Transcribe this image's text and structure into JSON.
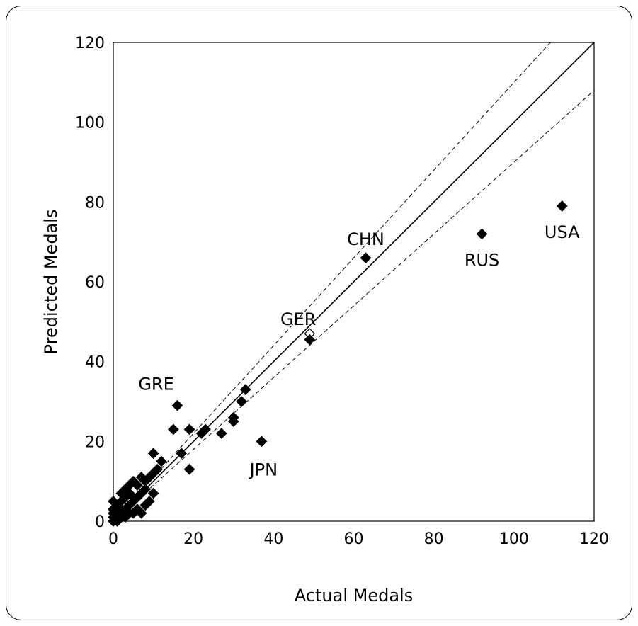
{
  "chart_data": {
    "type": "scatter",
    "xlabel": "Actual Medals",
    "ylabel": "Predicted Medals",
    "xlim": [
      0,
      120
    ],
    "ylim": [
      0,
      120
    ],
    "xticks": [
      0,
      20,
      40,
      60,
      80,
      100,
      120
    ],
    "yticks": [
      0,
      20,
      40,
      60,
      80,
      100,
      120
    ],
    "grid": false,
    "reference_lines": [
      {
        "style": "solid",
        "slope": 1.0,
        "intercept": 0
      },
      {
        "style": "dashed",
        "slope": 1.1,
        "intercept": 0
      },
      {
        "style": "dashed",
        "slope": 0.9,
        "intercept": 0
      }
    ],
    "points": [
      {
        "x": 112,
        "y": 79,
        "label": "USA"
      },
      {
        "x": 92,
        "y": 72,
        "label": "RUS"
      },
      {
        "x": 63,
        "y": 66,
        "label": "CHN"
      },
      {
        "x": 49,
        "y": 47,
        "label": "GER",
        "hollow": true
      },
      {
        "x": 49,
        "y": 45.5
      },
      {
        "x": 37,
        "y": 20,
        "label": "JPN"
      },
      {
        "x": 16,
        "y": 29,
        "label": "GRE"
      },
      {
        "x": 33,
        "y": 33
      },
      {
        "x": 32,
        "y": 30
      },
      {
        "x": 30,
        "y": 26
      },
      {
        "x": 30,
        "y": 25
      },
      {
        "x": 27,
        "y": 22
      },
      {
        "x": 23,
        "y": 23
      },
      {
        "x": 22,
        "y": 22
      },
      {
        "x": 19,
        "y": 23
      },
      {
        "x": 15,
        "y": 23
      },
      {
        "x": 17,
        "y": 17
      },
      {
        "x": 19,
        "y": 13
      },
      {
        "x": 12,
        "y": 15
      },
      {
        "x": 10,
        "y": 17
      },
      {
        "x": 11,
        "y": 13
      },
      {
        "x": 10,
        "y": 12
      },
      {
        "x": 9,
        "y": 11
      },
      {
        "x": 8,
        "y": 10
      },
      {
        "x": 10,
        "y": 7
      },
      {
        "x": 8,
        "y": 8
      },
      {
        "x": 7,
        "y": 11
      },
      {
        "x": 6,
        "y": 9
      },
      {
        "x": 5,
        "y": 10
      },
      {
        "x": 7,
        "y": 7
      },
      {
        "x": 6,
        "y": 6
      },
      {
        "x": 8,
        "y": 4
      },
      {
        "x": 7,
        "y": 2
      },
      {
        "x": 5,
        "y": 5
      },
      {
        "x": 4,
        "y": 7
      },
      {
        "x": 3,
        "y": 8
      },
      {
        "x": 4,
        "y": 4
      },
      {
        "x": 5,
        "y": 2
      },
      {
        "x": 3,
        "y": 6
      },
      {
        "x": 3,
        "y": 3
      },
      {
        "x": 2,
        "y": 5
      },
      {
        "x": 2,
        "y": 2
      },
      {
        "x": 1,
        "y": 4
      },
      {
        "x": 1,
        "y": 1
      },
      {
        "x": 0,
        "y": 3
      },
      {
        "x": 0,
        "y": 1
      },
      {
        "x": 0,
        "y": 0
      },
      {
        "x": 1,
        "y": 0
      },
      {
        "x": 2,
        "y": 1
      },
      {
        "x": 0,
        "y": 2
      },
      {
        "x": 3,
        "y": 1
      },
      {
        "x": 4,
        "y": 2
      },
      {
        "x": 6,
        "y": 3
      },
      {
        "x": 9,
        "y": 5
      },
      {
        "x": 2,
        "y": 7
      },
      {
        "x": 5,
        "y": 6
      },
      {
        "x": 4,
        "y": 9
      },
      {
        "x": 1,
        "y": 2
      },
      {
        "x": 0,
        "y": 5
      },
      {
        "x": 2,
        "y": 3
      }
    ]
  }
}
